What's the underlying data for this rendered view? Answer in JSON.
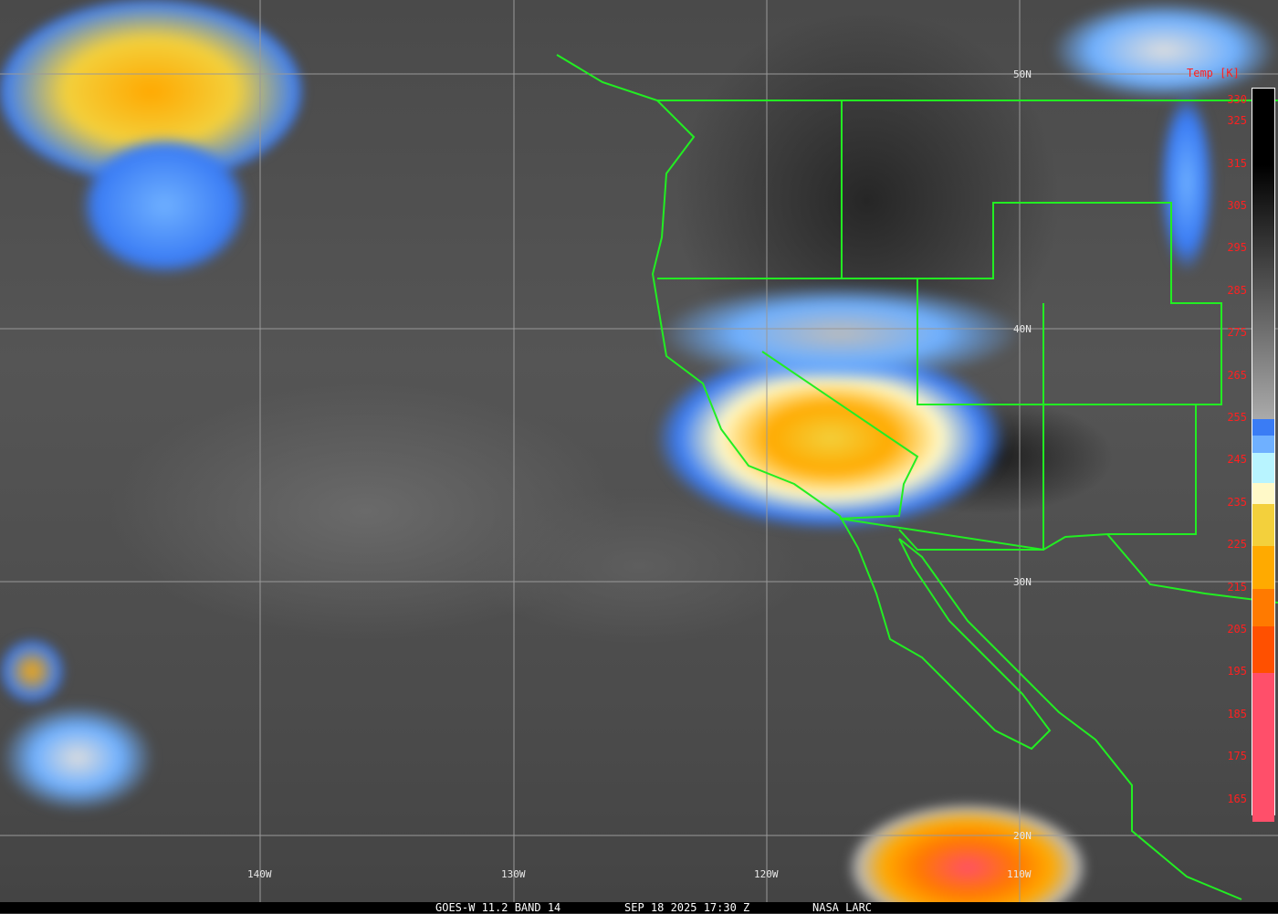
{
  "colorbar": {
    "title": "Temp [K]",
    "labels": [
      "330",
      "325",
      "315",
      "305",
      "295",
      "285",
      "275",
      "265",
      "255",
      "245",
      "235",
      "225",
      "215",
      "205",
      "195",
      "185",
      "175",
      "165"
    ],
    "segments": [
      {
        "from": 330,
        "to": 255,
        "color": "gradient black-gray"
      },
      {
        "color": "#3a7cf5"
      },
      {
        "color": "#6fb0ff"
      },
      {
        "color": "#b8f4ff"
      },
      {
        "color": "#fff9c8"
      },
      {
        "color": "#f3d03c"
      },
      {
        "color": "#ffaa00"
      },
      {
        "color": "#ff7a00"
      },
      {
        "color": "#ff5000"
      },
      {
        "color": "#ff4f6a"
      }
    ]
  },
  "grid": {
    "lat": [
      "50N",
      "40N",
      "30N",
      "20N"
    ],
    "lon": [
      "140W",
      "130W",
      "120W",
      "110W"
    ]
  },
  "colors": {
    "borders": "#22ee22",
    "grid": "#999999",
    "labels": "#ff2020"
  },
  "caption": {
    "satellite": "GOES-W 11.2 BAND 14",
    "datetime": "SEP 18 2025 17:30 Z",
    "source": "NASA LARC"
  }
}
